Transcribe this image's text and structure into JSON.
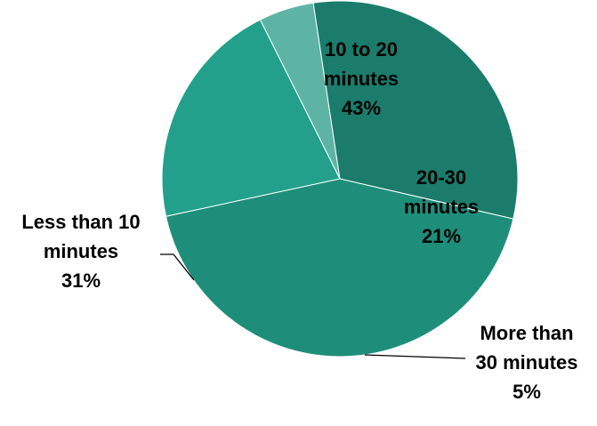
{
  "chart_data": {
    "type": "pie",
    "title": "",
    "slices": [
      {
        "name_lines": [
          "10 to 20",
          "minutes"
        ],
        "value": 43,
        "value_label": "43%",
        "color": "#1e8e7b"
      },
      {
        "name_lines": [
          "20-30",
          "minutes"
        ],
        "value": 21,
        "value_label": "21%",
        "color": "#22a08b"
      },
      {
        "name_lines": [
          "More than",
          "30 minutes"
        ],
        "value": 5,
        "value_label": "5%",
        "color": "#5db4a5"
      },
      {
        "name_lines": [
          "Less than 10",
          "minutes"
        ],
        "value": 31,
        "value_label": "31%",
        "color": "#1b7c6c"
      }
    ],
    "legend": "none"
  }
}
